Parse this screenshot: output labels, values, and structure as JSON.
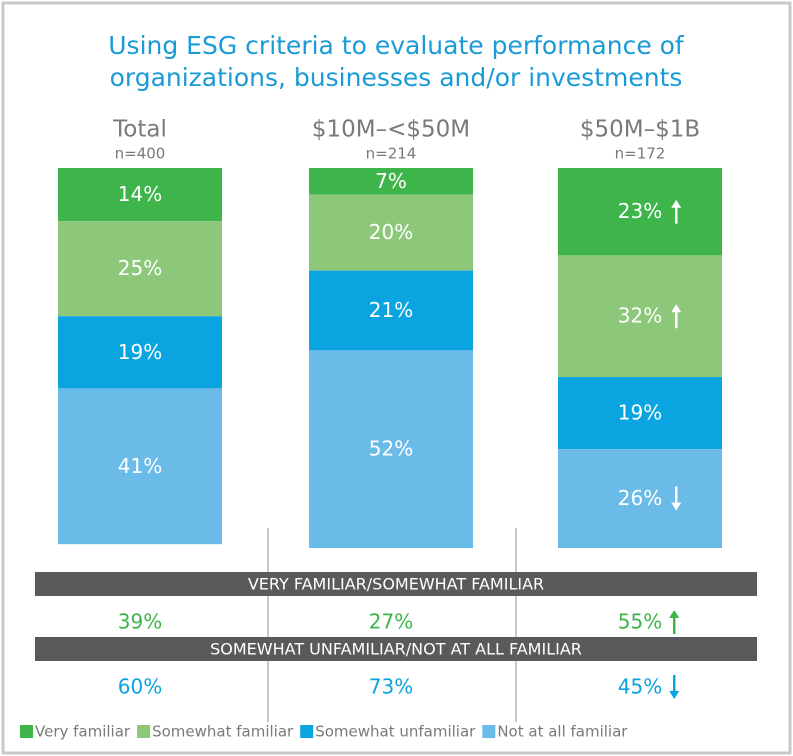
{
  "chart_data": {
    "type": "stacked-bar",
    "title": [
      "Using ESG criteria to evaluate performance of",
      "organizations, businesses and/or investments"
    ],
    "categories": [
      "Total",
      "$10M–<$50M",
      "$50M–$1B"
    ],
    "category_notes": [
      "n=400",
      "n=214",
      "n=172"
    ],
    "ylim": [
      0,
      100
    ],
    "series": [
      {
        "name": "Very familiar",
        "color": "#3db54a",
        "values": [
          14,
          7,
          23
        ],
        "value_labels": [
          "14%",
          "7%",
          "23%"
        ],
        "arrows": [
          null,
          null,
          "up"
        ]
      },
      {
        "name": "Somewhat familiar",
        "color": "#8dc87a",
        "values": [
          25,
          20,
          32
        ],
        "value_labels": [
          "25%",
          "20%",
          "32%"
        ],
        "arrows": [
          null,
          null,
          "up"
        ]
      },
      {
        "name": "Somewhat unfamiliar",
        "color": "#0aa4e0",
        "values": [
          19,
          21,
          19
        ],
        "value_labels": [
          "19%",
          "21%",
          "19%"
        ],
        "arrows": [
          null,
          null,
          null
        ]
      },
      {
        "name": "Not at all familiar",
        "color": "#6bbbe8",
        "values": [
          41,
          52,
          26
        ],
        "value_labels": [
          "41%",
          "52%",
          "26%"
        ],
        "arrows": [
          null,
          null,
          "down"
        ]
      }
    ],
    "summary": [
      {
        "label": "VERY FAMILIAR/SOMEWHAT FAMILIAR",
        "color": "#3db54a",
        "values": [
          39,
          27,
          55
        ],
        "value_labels": [
          "39%",
          "27%",
          "55%"
        ],
        "arrows": [
          null,
          null,
          "up"
        ]
      },
      {
        "label": "SOMEWHAT UNFAMILIAR/NOT AT ALL FAMILIAR",
        "color": "#0aa4e0",
        "values": [
          60,
          73,
          45
        ],
        "value_labels": [
          "60%",
          "73%",
          "45%"
        ],
        "arrows": [
          null,
          null,
          "down"
        ]
      }
    ]
  }
}
